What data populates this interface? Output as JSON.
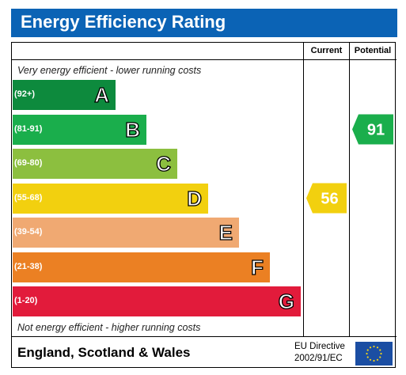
{
  "title": "Energy Efficiency Rating",
  "columns": {
    "current": "Current",
    "potential": "Potential"
  },
  "top_note": "Very energy efficient - lower running costs",
  "bottom_note": "Not energy efficient - higher running costs",
  "footer": {
    "region": "England, Scotland & Wales",
    "directive_line1": "EU Directive",
    "directive_line2": "2002/91/EC"
  },
  "colors": {
    "header": "#0b63b5",
    "flag": "#1b4ea3",
    "stars": "#f7d417"
  },
  "chart_data": {
    "type": "bar",
    "categories": [
      "A",
      "B",
      "C",
      "D",
      "E",
      "F",
      "G"
    ],
    "ranges": [
      "(92+)",
      "(81-91)",
      "(69-80)",
      "(55-68)",
      "(39-54)",
      "(21-38)",
      "(1-20)"
    ],
    "band_colors": [
      "#0d8a3d",
      "#1aae4c",
      "#8cbf3f",
      "#f2d00f",
      "#f0a972",
      "#eb8023",
      "#e21b3b"
    ],
    "current": {
      "value": 56,
      "band": "D",
      "color": "#f2d00f"
    },
    "potential": {
      "value": 91,
      "band": "B",
      "color": "#1aae4c"
    }
  }
}
